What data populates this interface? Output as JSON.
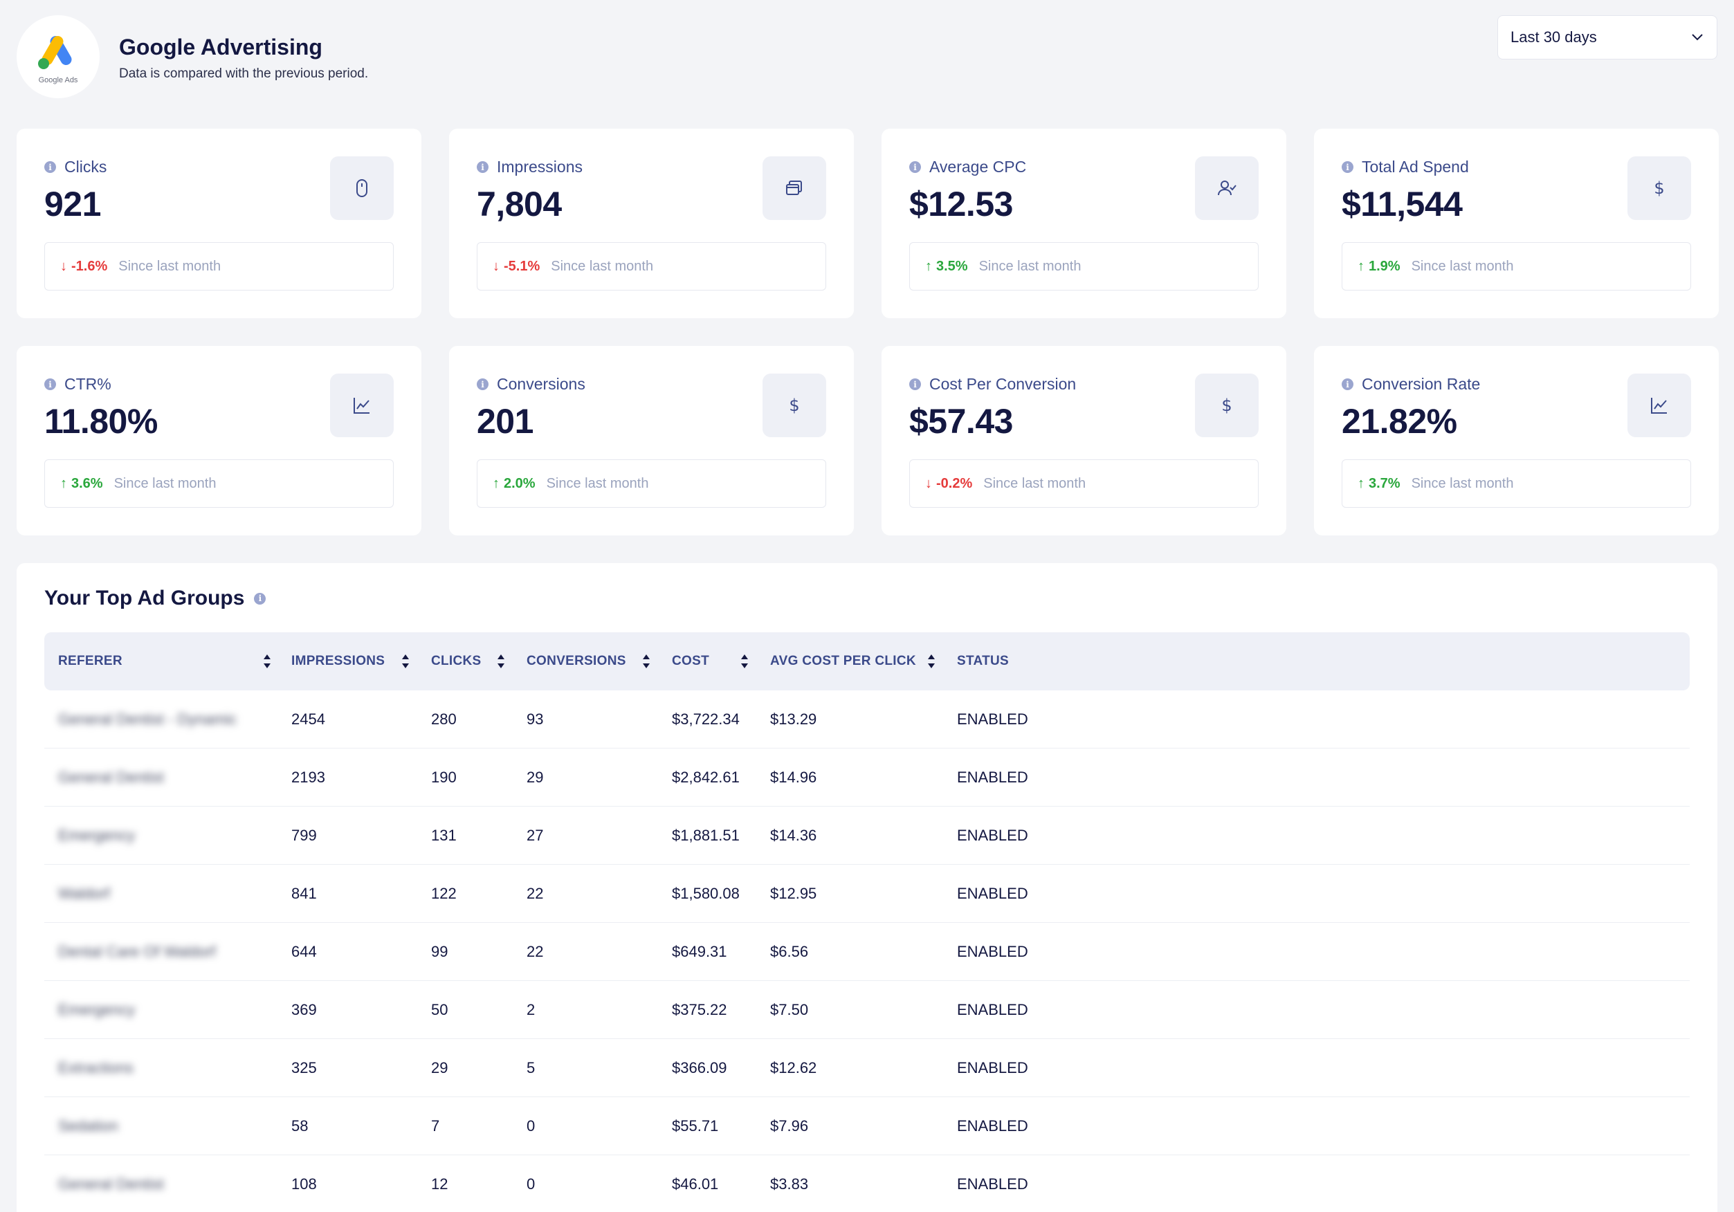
{
  "header": {
    "logo_text": "Google Ads",
    "title": "Google Advertising",
    "subtitle": "Data is compared with the previous period.",
    "range": "Last 30 days"
  },
  "colors": {
    "up": "#2aa73c",
    "down": "#e53b3b",
    "accent": "#3b4a8a",
    "google_blue": "#4285f4",
    "google_yellow": "#fbbc04",
    "google_green": "#34a853"
  },
  "since_text": "Since last month",
  "cards": [
    {
      "label": "Clicks",
      "value": "921",
      "delta": "-1.6%",
      "dir": "down",
      "icon": "mouse-icon"
    },
    {
      "label": "Impressions",
      "value": "7,804",
      "delta": "-5.1%",
      "dir": "down",
      "icon": "windows-icon"
    },
    {
      "label": "Average CPC",
      "value": "$12.53",
      "delta": "3.5%",
      "dir": "up",
      "icon": "user-check-icon"
    },
    {
      "label": "Total Ad Spend",
      "value": "$11,544",
      "delta": "1.9%",
      "dir": "up",
      "icon": "dollar-icon"
    },
    {
      "label": "CTR%",
      "value": "11.80%",
      "delta": "3.6%",
      "dir": "up",
      "icon": "chart-icon"
    },
    {
      "label": "Conversions",
      "value": "201",
      "delta": "2.0%",
      "dir": "up",
      "icon": "dollar-icon"
    },
    {
      "label": "Cost Per Conversion",
      "value": "$57.43",
      "delta": "-0.2%",
      "dir": "down",
      "icon": "dollar-icon"
    },
    {
      "label": "Conversion Rate",
      "value": "21.82%",
      "delta": "3.7%",
      "dir": "up",
      "icon": "chart-icon"
    }
  ],
  "table": {
    "title": "Your Top Ad Groups",
    "columns": [
      "REFERER",
      "IMPRESSIONS",
      "CLICKS",
      "CONVERSIONS",
      "COST",
      "AVG COST PER CLICK",
      "STATUS"
    ],
    "rows": [
      [
        "General Dentist - Dynamic",
        "2454",
        "280",
        "93",
        "$3,722.34",
        "$13.29",
        "ENABLED"
      ],
      [
        "General Dentist",
        "2193",
        "190",
        "29",
        "$2,842.61",
        "$14.96",
        "ENABLED"
      ],
      [
        "Emergency",
        "799",
        "131",
        "27",
        "$1,881.51",
        "$14.36",
        "ENABLED"
      ],
      [
        "Waldorf",
        "841",
        "122",
        "22",
        "$1,580.08",
        "$12.95",
        "ENABLED"
      ],
      [
        "Dental Care Of Waldorf",
        "644",
        "99",
        "22",
        "$649.31",
        "$6.56",
        "ENABLED"
      ],
      [
        "Emergency",
        "369",
        "50",
        "2",
        "$375.22",
        "$7.50",
        "ENABLED"
      ],
      [
        "Extractions",
        "325",
        "29",
        "5",
        "$366.09",
        "$12.62",
        "ENABLED"
      ],
      [
        "Sedation",
        "58",
        "7",
        "0",
        "$55.71",
        "$7.96",
        "ENABLED"
      ],
      [
        "General Dentist",
        "108",
        "12",
        "0",
        "$46.01",
        "$3.83",
        "ENABLED"
      ]
    ]
  }
}
